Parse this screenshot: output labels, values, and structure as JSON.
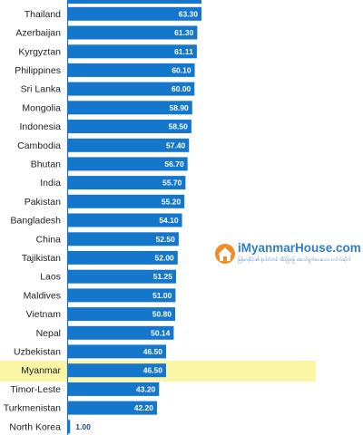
{
  "chart_data": {
    "type": "bar",
    "orientation": "horizontal",
    "categories": [
      "Thailand",
      "Azerbaijan",
      "Kyrgyztan",
      "Philippines",
      "Sri Lanka",
      "Mongolia",
      "Indonesia",
      "Cambodia",
      "Bhutan",
      "India",
      "Pakistan",
      "Bangladesh",
      "China",
      "Tajikistan",
      "Laos",
      "Maldives",
      "Vietnam",
      "Nepal",
      "Uzbekistan",
      "Myanmar",
      "Timor-Leste",
      "Turkmenistan",
      "North Korea"
    ],
    "values": [
      63.3,
      61.3,
      61.11,
      60.1,
      60.0,
      58.9,
      58.5,
      57.4,
      56.7,
      55.7,
      55.2,
      54.1,
      52.5,
      52.0,
      51.25,
      51.0,
      50.8,
      50.14,
      46.5,
      46.5,
      43.2,
      42.2,
      1.0
    ],
    "value_labels": [
      "63.30",
      "61.30",
      "61.11",
      "60.10",
      "60.00",
      "58.90",
      "58.50",
      "57.40",
      "56.70",
      "55.70",
      "55.20",
      "54.10",
      "52.50",
      "52.00",
      "51.25",
      "51.00",
      "50.80",
      "50.14",
      "46.50",
      "46.50",
      "43.20",
      "42.20",
      "1.00"
    ],
    "highlight": "Myanmar",
    "bar_color": "#1477cc",
    "highlight_color": "#fbf5a6",
    "value_label_color_inside": "#ffffff",
    "value_label_color_outside": "#1a4f8a"
  },
  "watermark": {
    "title": "iMyanmarHouse.com",
    "subtitle": "မြန်မာနိုင်ငံ၏ နံပါတ်တစ် အိမ်ခြံမြေ ဆောင်ရွက်ပေးသော ဝက်ဘ်ဆိုက်",
    "icon": "house-logo-icon",
    "colors": {
      "orange": "#f28c28",
      "blue": "#2f7fc1"
    }
  }
}
